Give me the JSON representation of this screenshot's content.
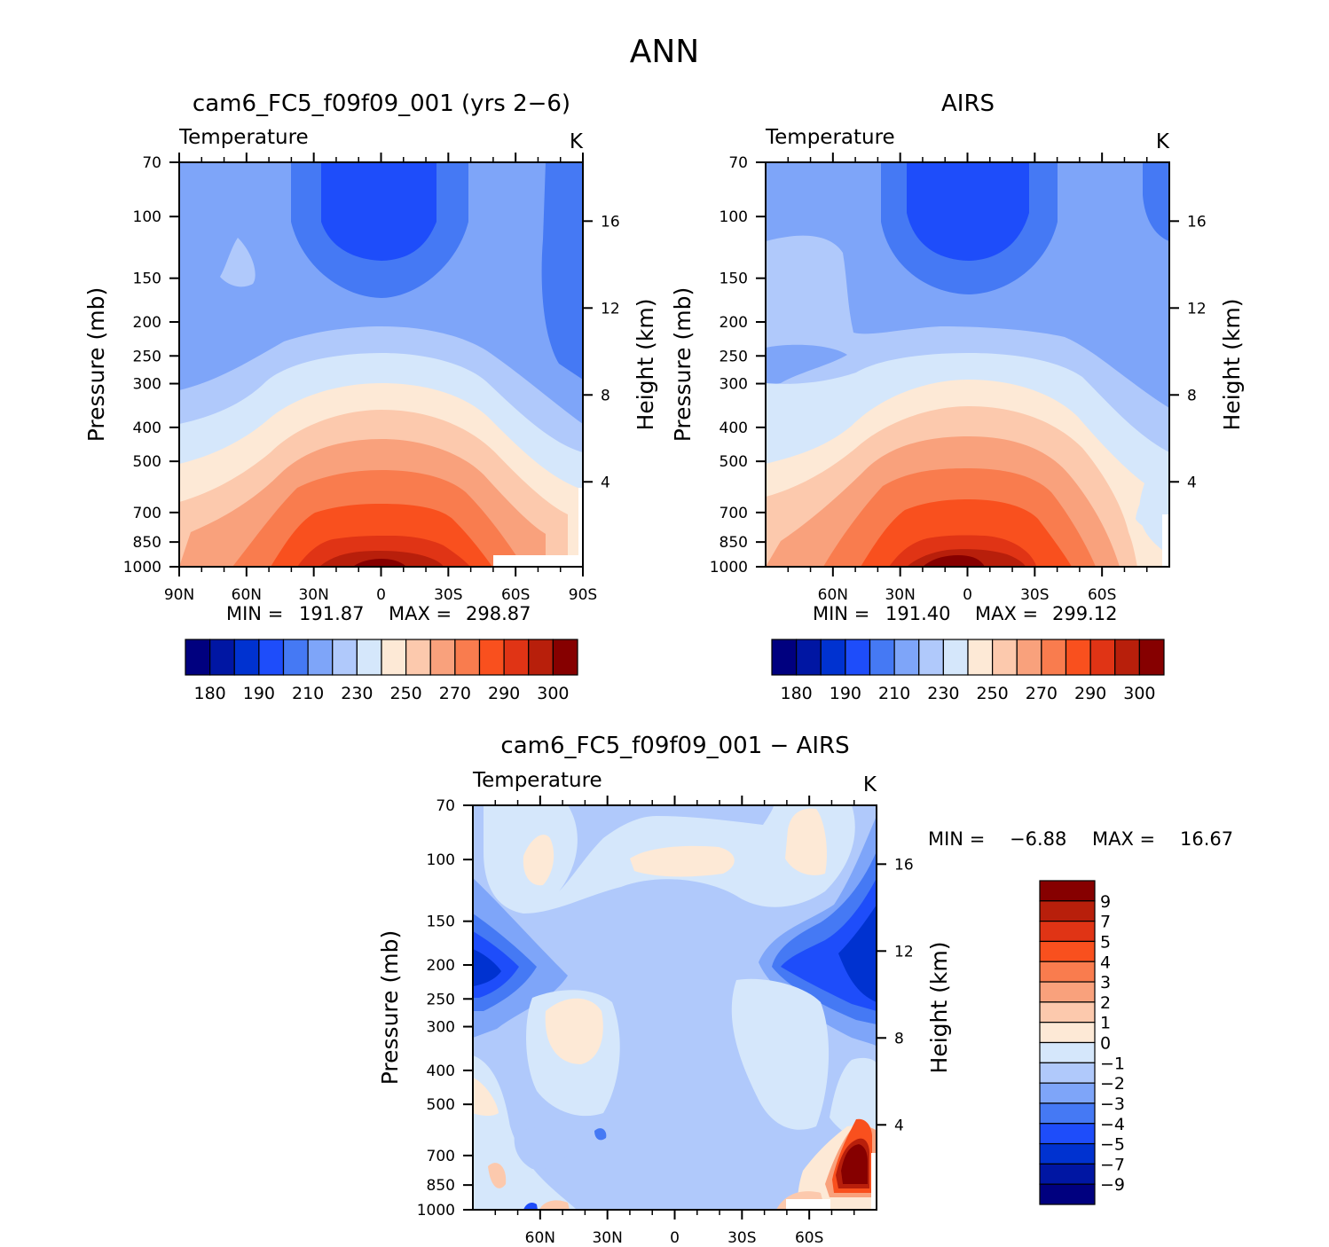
{
  "page": {
    "title": "ANN"
  },
  "colors": {
    "abs_scale": [
      "#00007f",
      "#0016a3",
      "#0032d0",
      "#1e4dfa",
      "#4579f4",
      "#7ea5f9",
      "#b0c9fb",
      "#d5e7fb",
      "#fde9d6",
      "#fcc9ad",
      "#f9a17c",
      "#f97c4e",
      "#f9501e",
      "#e03415",
      "#b81f0b",
      "#860000"
    ],
    "diff_scale": [
      "#00007f",
      "#0016a3",
      "#0032d0",
      "#1e4dfa",
      "#4579f4",
      "#7ea5f9",
      "#b0c9fb",
      "#d5e7fb",
      "#fde9d6",
      "#fcc9ad",
      "#f9a17c",
      "#f97c4e",
      "#f9501e",
      "#e03415",
      "#b81f0b",
      "#860000"
    ]
  },
  "chart_data": [
    {
      "id": "model",
      "type": "heatmap",
      "title": "cam6_FC5_f09f09_001 (yrs 2−6)",
      "left_label": "Temperature",
      "units": "K",
      "xlabel": "",
      "ylabel": "Pressure (mb)",
      "ylabel_right": "Height (km)",
      "xticks": [
        "90N",
        "60N",
        "30N",
        "0",
        "30S",
        "60S",
        "90S"
      ],
      "x_values": [
        90,
        60,
        30,
        0,
        -30,
        -60,
        -90
      ],
      "xlim": [
        90,
        -90
      ],
      "yticks": [
        "70",
        "100",
        "150",
        "200",
        "250",
        "300",
        "400",
        "500",
        "700",
        "850",
        "1000"
      ],
      "y_values": [
        70,
        100,
        150,
        200,
        250,
        300,
        400,
        500,
        700,
        850,
        1000
      ],
      "ylim": [
        70,
        1000
      ],
      "y_scale": "log",
      "right_ticks": [
        "16",
        "12",
        "8",
        "4"
      ],
      "right_values": [
        16,
        12,
        8,
        4
      ],
      "min_label": "MIN =",
      "min_value": "191.87",
      "max_label": "MAX =",
      "max_value": "298.87",
      "colorbar_labels": [
        "180",
        "190",
        "210",
        "230",
        "250",
        "270",
        "290",
        "300"
      ]
    },
    {
      "id": "obs",
      "type": "heatmap",
      "title": "AIRS",
      "left_label": "Temperature",
      "units": "K",
      "xlabel": "",
      "ylabel": "Pressure (mb)",
      "ylabel_right": "Height (km)",
      "xticks": [
        "60N",
        "30N",
        "0",
        "30S",
        "60S"
      ],
      "x_values": [
        60,
        30,
        0,
        -30,
        -60
      ],
      "xlim": [
        90,
        -90
      ],
      "yticks": [
        "70",
        "100",
        "150",
        "200",
        "250",
        "300",
        "400",
        "500",
        "700",
        "850",
        "1000"
      ],
      "y_values": [
        70,
        100,
        150,
        200,
        250,
        300,
        400,
        500,
        700,
        850,
        1000
      ],
      "ylim": [
        70,
        1000
      ],
      "y_scale": "log",
      "right_ticks": [
        "16",
        "12",
        "8",
        "4"
      ],
      "right_values": [
        16,
        12,
        8,
        4
      ],
      "min_label": "MIN =",
      "min_value": "191.40",
      "max_label": "MAX =",
      "max_value": "299.12",
      "colorbar_labels": [
        "180",
        "190",
        "210",
        "230",
        "250",
        "270",
        "290",
        "300"
      ]
    },
    {
      "id": "diff",
      "type": "heatmap",
      "title": "cam6_FC5_f09f09_001 − AIRS",
      "left_label": "Temperature",
      "units": "K",
      "xlabel": "",
      "ylabel": "Pressure (mb)",
      "ylabel_right": "Height (km)",
      "xticks": [
        "60N",
        "30N",
        "0",
        "30S",
        "60S"
      ],
      "x_values": [
        60,
        30,
        0,
        -30,
        -60
      ],
      "xlim": [
        90,
        -90
      ],
      "yticks": [
        "70",
        "100",
        "150",
        "200",
        "250",
        "300",
        "400",
        "500",
        "700",
        "850",
        "1000"
      ],
      "y_values": [
        70,
        100,
        150,
        200,
        250,
        300,
        400,
        500,
        700,
        850,
        1000
      ],
      "ylim": [
        70,
        1000
      ],
      "y_scale": "log",
      "right_ticks": [
        "16",
        "12",
        "8",
        "4"
      ],
      "right_values": [
        16,
        12,
        8,
        4
      ],
      "min_label": "MIN =",
      "min_value": "−6.88",
      "max_label": "MAX =",
      "max_value": "16.67",
      "colorbar_labels": [
        "9",
        "7",
        "5",
        "4",
        "3",
        "2",
        "1",
        "0",
        "−1",
        "−2",
        "−3",
        "−4",
        "−5",
        "−7",
        "−9"
      ]
    }
  ]
}
